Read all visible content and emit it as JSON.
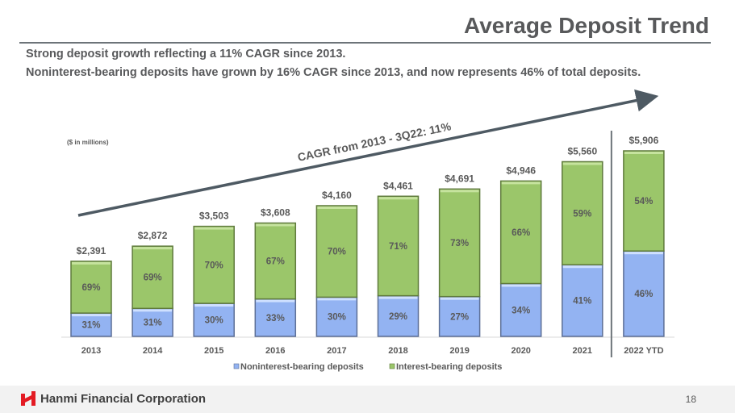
{
  "header": {
    "title": "Average Deposit Trend",
    "subtitle_lines": [
      "Strong deposit growth reflecting a 11% CAGR since 2013.",
      "Noninterest-bearing deposits have grown by 16% CAGR since 2013, and now represents 46% of total deposits."
    ]
  },
  "chart_data": {
    "type": "bar",
    "stacked": true,
    "units_note": "($ in millions)",
    "annotation": "CAGR from 2013 - 3Q22: 11%",
    "categories": [
      "2013",
      "2014",
      "2015",
      "2016",
      "2017",
      "2018",
      "2019",
      "2020",
      "2021",
      "2022 YTD"
    ],
    "totals": [
      2391,
      2872,
      3503,
      3608,
      4160,
      4461,
      4691,
      4946,
      5560,
      5906
    ],
    "total_labels": [
      "$2,391",
      "$2,872",
      "$3,503",
      "$3,608",
      "$4,160",
      "$4,461",
      "$4,691",
      "$4,946",
      "$5,560",
      "$5,906"
    ],
    "series": [
      {
        "name": "Noninterest-bearing deposits",
        "color": "#93b3f2",
        "percent": [
          31,
          31,
          30,
          33,
          30,
          29,
          27,
          34,
          41,
          46
        ]
      },
      {
        "name": "Interest-bearing deposits",
        "color": "#9bc66a",
        "percent": [
          69,
          69,
          70,
          67,
          70,
          71,
          73,
          66,
          59,
          54
        ]
      }
    ],
    "ylim": [
      0,
      6000
    ],
    "grid": false,
    "legend": "bottom",
    "divider_before_category": "2022 YTD",
    "colors": {
      "text": "#595959",
      "arrow": "#4e5a63",
      "divider": "#6d7479"
    }
  },
  "footer": {
    "company": "Hanmi Financial Corporation",
    "page_number": "18",
    "logo_color": "#e31b23"
  }
}
